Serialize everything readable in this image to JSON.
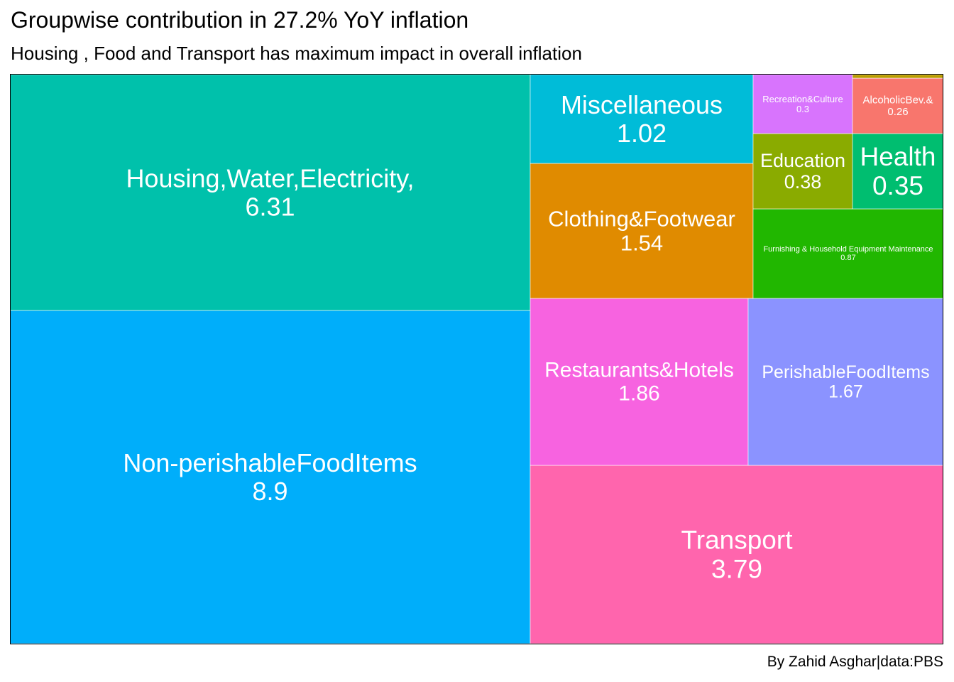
{
  "title": "Groupwise contribution in 27.2% YoY inflation",
  "subtitle": "Housing , Food and Transport has maximum impact in overall inflation",
  "caption": "By Zahid Asghar|data:PBS",
  "chart_data": {
    "type": "treemap",
    "label_color": "#ffffff",
    "items": [
      {
        "key": "nonperishable",
        "label": "Non-perishableFoodItems",
        "value": 8.9,
        "value_text": "8.9",
        "color": "#00aefa"
      },
      {
        "key": "housing",
        "label": "Housing,Water,Electricity,",
        "value": 6.31,
        "value_text": "6.31",
        "color": "#00c1ab"
      },
      {
        "key": "transport",
        "label": "Transport",
        "value": 3.79,
        "value_text": "3.79",
        "color": "#ff65ad"
      },
      {
        "key": "restaurants",
        "label": "Restaurants&Hotels",
        "value": 1.86,
        "value_text": "1.86",
        "color": "#f763e0"
      },
      {
        "key": "perishable",
        "label": "PerishableFoodItems",
        "value": 1.67,
        "value_text": "1.67",
        "color": "#8b93ff"
      },
      {
        "key": "clothing",
        "label": "Clothing&Footwear",
        "value": 1.54,
        "value_text": "1.54",
        "color": "#e08b00"
      },
      {
        "key": "misc",
        "label": "Miscellaneous",
        "value": 1.02,
        "value_text": "1.02",
        "color": "#00bcd8"
      },
      {
        "key": "furnishing",
        "label": "Furnishing & Household Equipment Maintenance",
        "value": 0.87,
        "value_text": "0.87",
        "color": "#21b700"
      },
      {
        "key": "education",
        "label": "Education",
        "value": 0.38,
        "value_text": "0.38",
        "color": "#8aab00"
      },
      {
        "key": "health",
        "label": "Health",
        "value": 0.35,
        "value_text": "0.35",
        "color": "#00be70"
      },
      {
        "key": "recreation",
        "label": "Recreation&Culture",
        "value": 0.3,
        "value_text": "0.3",
        "color": "#d874fd"
      },
      {
        "key": "alcoholic",
        "label": "AlcoholicBev.&",
        "value": 0.26,
        "value_text": "0.26",
        "color": "#f8766d"
      },
      {
        "key": "communication",
        "label": "",
        "value": 0.04,
        "value_text": "",
        "color": "#bb9d00"
      }
    ]
  }
}
